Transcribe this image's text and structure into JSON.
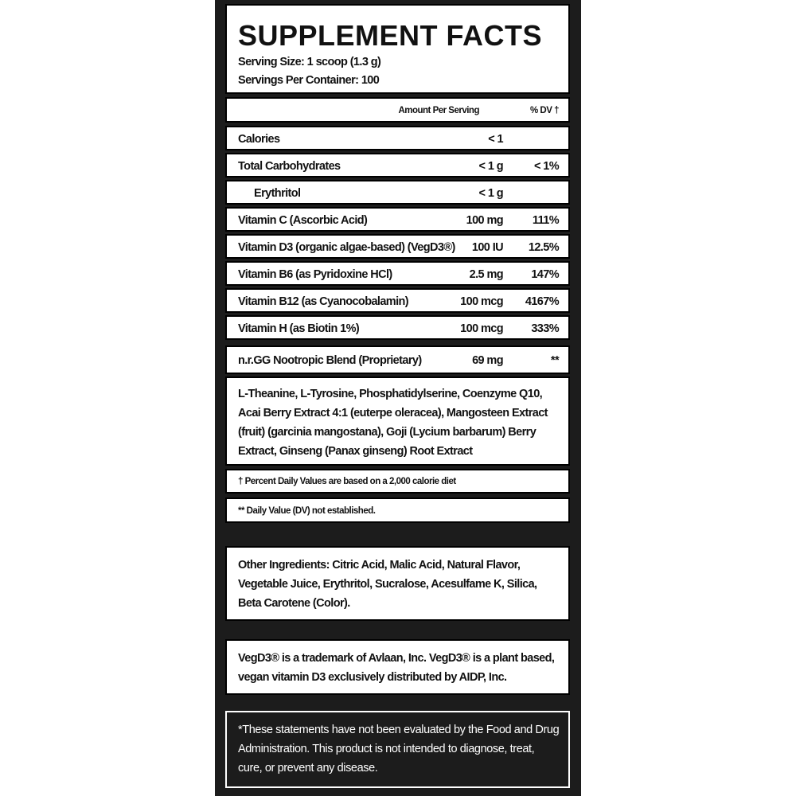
{
  "header": {
    "title": "SUPPLEMENT FACTS",
    "serving_size": "Serving Size: 1 scoop (1.3 g)",
    "servings_per_container": "Servings Per Container: 100"
  },
  "table": {
    "columns": [
      "Amount Per Serving",
      "% DV †"
    ],
    "rows": [
      {
        "name": "Calories",
        "amount": "< 1"
      },
      {
        "name": "Total Carbohydrates",
        "amount": "< 1 g",
        "dv": "< 1%"
      },
      {
        "name": "Erythritol",
        "amount": "< 1 g",
        "indent": true
      },
      {
        "name": "Vitamin C (Ascorbic Acid)",
        "amount": "100 mg",
        "dv": "111%"
      },
      {
        "name": "Vitamin D3 (organic algae-based) (VegD3®)",
        "amount": "100 IU",
        "dv": "12.5%"
      },
      {
        "name": "Vitamin B6 (as Pyridoxine HCl)",
        "amount": "2.5 mg",
        "dv": "147%"
      },
      {
        "name": "Vitamin B12 (as Cyanocobalamin)",
        "amount": "100 mcg",
        "dv": "4167%"
      },
      {
        "name": "Vitamin H (as Biotin 1%)",
        "amount": "100 mcg",
        "dv": "333%"
      }
    ]
  },
  "blend": {
    "name": "n.r.GG Nootropic Blend (Proprietary)",
    "amount": "69 mg",
    "dv": "**",
    "ingredients": "L-Theanine, L-Tyrosine, Phosphatidylserine, Coenzyme Q10, Acai Berry Extract 4:1 (euterpe oleracea), Mangosteen Extract (fruit) (garcinia mangostana), Goji (Lycium barbarum) Berry Extract, Ginseng (Panax ginseng) Root Extract"
  },
  "footnotes": [
    "† Percent Daily Values are based on a 2,000 calorie diet",
    "** Daily Value (DV) not established."
  ],
  "other_ingredients": "Other Ingredients: Citric Acid, Malic Acid, Natural Flavor, Vegetable Juice, Erythritol, Sucralose, Acesulfame K, Silica, Beta Carotene (Color).",
  "trademark": "VegD3® is a trademark of Avlaan, Inc. VegD3® is a plant based, vegan vitamin D3 exclusively distributed by AIDP, Inc.",
  "disclaimer": "*These statements have not been evaluated by the Food and Drug Administration. This product is not intended to diagnose, treat, cure, or prevent any disease."
}
